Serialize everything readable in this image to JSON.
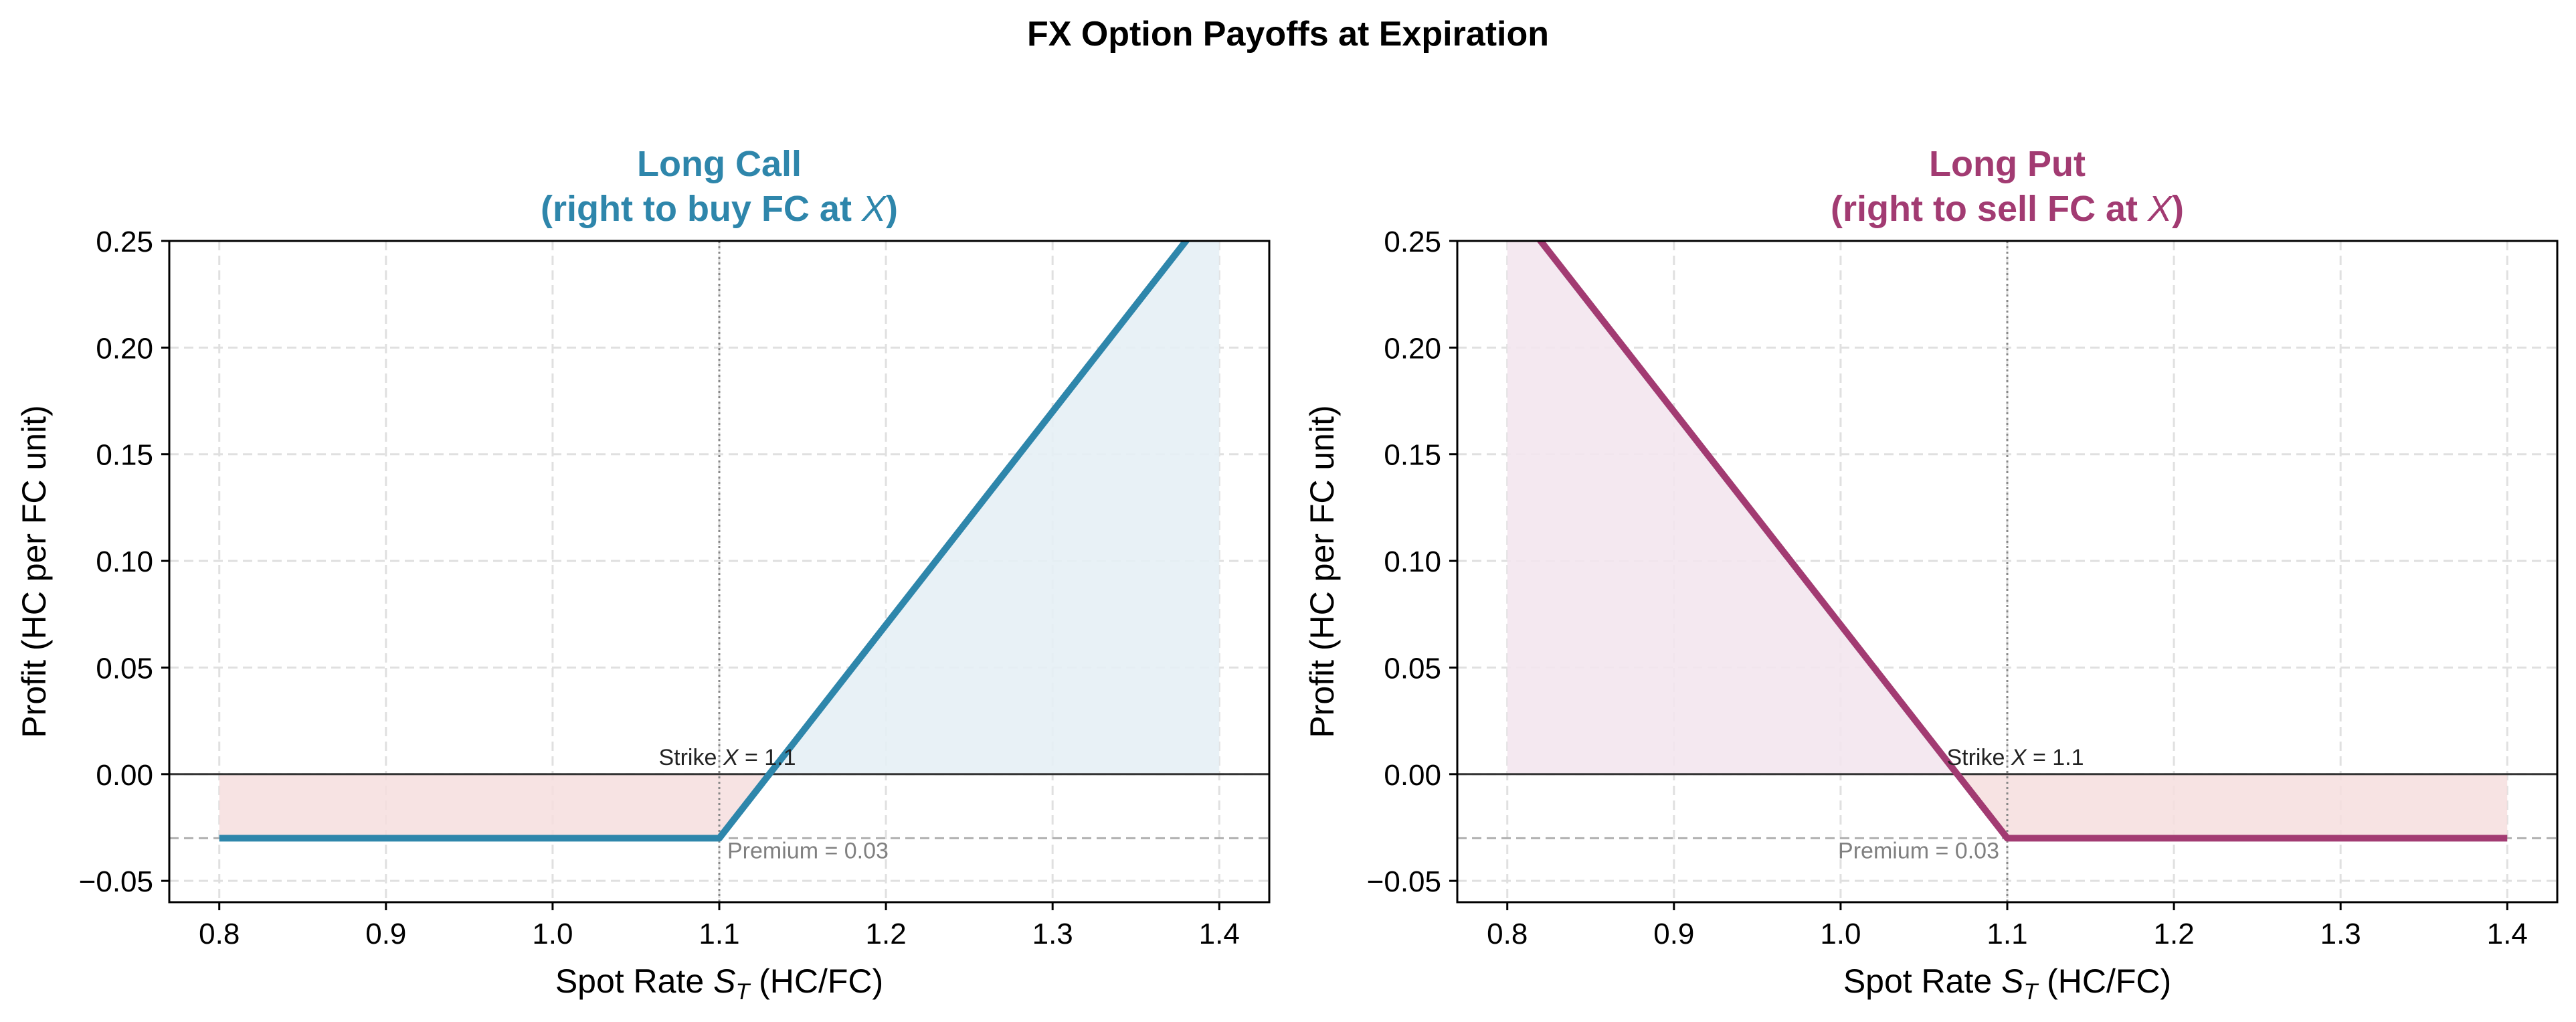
{
  "figure_title": "FX Option Payoffs at Expiration",
  "colors": {
    "call": "#2e86ab",
    "put": "#a23b72",
    "loss_fill": "#f6dede",
    "call_fill": "#e5f0f5",
    "put_fill": "#f3e5ee",
    "grid": "#e0e0e0",
    "premium_line": "#b0b0b0",
    "annotation_gray": "#808080"
  },
  "chart_data": [
    {
      "type": "line",
      "title_line1": "Long Call",
      "title_line2_pre": "(right to buy FC at ",
      "title_line2_var": "X",
      "title_line2_post": ")",
      "xlabel_pre": "Spot Rate ",
      "xlabel_var": "S",
      "xlabel_sub": "T",
      "xlabel_post": " (HC/FC)",
      "ylabel": "Profit (HC per FC unit)",
      "xlim": [
        0.77,
        1.43
      ],
      "ylim": [
        -0.06,
        0.25
      ],
      "x_ticks": [
        0.8,
        0.9,
        1.0,
        1.1,
        1.2,
        1.3,
        1.4
      ],
      "x_tick_labels": [
        "0.8",
        "0.9",
        "1.0",
        "1.1",
        "1.2",
        "1.3",
        "1.4"
      ],
      "y_ticks": [
        -0.05,
        0.0,
        0.05,
        0.1,
        0.15,
        0.2,
        0.25
      ],
      "y_tick_labels": [
        "−0.05",
        "0.00",
        "0.05",
        "0.10",
        "0.15",
        "0.20",
        "0.25"
      ],
      "grid": true,
      "strike": 1.1,
      "premium": 0.03,
      "strike_label_pre": "Strike ",
      "strike_label_var": "X",
      "strike_label_post": " = 1.1",
      "premium_label": "Premium = 0.03",
      "series": [
        {
          "x": [
            0.8,
            1.1,
            1.4
          ],
          "y": [
            -0.03,
            -0.03,
            0.27
          ]
        }
      ]
    },
    {
      "type": "line",
      "title_line1": "Long Put",
      "title_line2_pre": "(right to sell FC at ",
      "title_line2_var": "X",
      "title_line2_post": ")",
      "xlabel_pre": "Spot Rate ",
      "xlabel_var": "S",
      "xlabel_sub": "T",
      "xlabel_post": " (HC/FC)",
      "ylabel": "Profit (HC per FC unit)",
      "xlim": [
        0.77,
        1.43
      ],
      "ylim": [
        -0.06,
        0.25
      ],
      "x_ticks": [
        0.8,
        0.9,
        1.0,
        1.1,
        1.2,
        1.3,
        1.4
      ],
      "x_tick_labels": [
        "0.8",
        "0.9",
        "1.0",
        "1.1",
        "1.2",
        "1.3",
        "1.4"
      ],
      "y_ticks": [
        -0.05,
        0.0,
        0.05,
        0.1,
        0.15,
        0.2,
        0.25
      ],
      "y_tick_labels": [
        "−0.05",
        "0.00",
        "0.05",
        "0.10",
        "0.15",
        "0.20",
        "0.25"
      ],
      "grid": true,
      "strike": 1.1,
      "premium": 0.03,
      "strike_label_pre": "Strike ",
      "strike_label_var": "X",
      "strike_label_post": " = 1.1",
      "premium_label": "Premium = 0.03",
      "series": [
        {
          "x": [
            0.8,
            1.1,
            1.4
          ],
          "y": [
            0.27,
            -0.03,
            -0.03
          ]
        }
      ]
    }
  ]
}
